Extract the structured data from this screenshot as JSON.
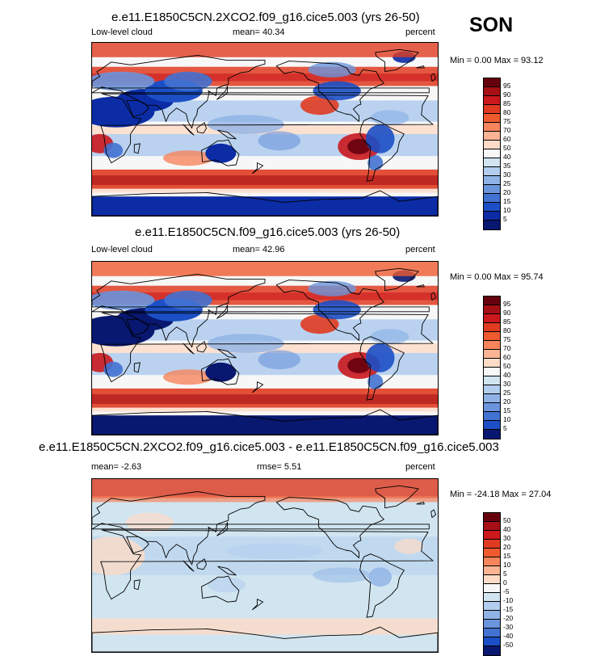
{
  "season": "SON",
  "panels": [
    {
      "title": "e.e11.E1850C5CN.2XCO2.f09_g16.cice5.003 (yrs 26-50)",
      "left_label": "Low-level cloud",
      "center_label": "mean=  40.34",
      "right_label": "percent",
      "minmax": "Min =   0.00 Max =  93.12",
      "colorbar": {
        "levels": [
          "95",
          "90",
          "85",
          "80",
          "75",
          "70",
          "60",
          "50",
          "40",
          "35",
          "30",
          "25",
          "20",
          "15",
          "10",
          "5"
        ],
        "colors": [
          "#67000d",
          "#a50f15",
          "#cb181d",
          "#e03b21",
          "#ef5b2f",
          "#f6855c",
          "#fbb493",
          "#fddbc7",
          "#f7f7f7",
          "#d1e5f0",
          "#b2cdee",
          "#8fb3e6",
          "#6a95dc",
          "#4272d2",
          "#1c4fc5",
          "#0b2ca5",
          "#08176f"
        ]
      },
      "style": "cloud"
    },
    {
      "title": "e.e11.E1850C5CN.f09_g16.cice5.003 (yrs 26-50)",
      "left_label": "Low-level cloud",
      "center_label": "mean=  42.96",
      "right_label": "percent",
      "minmax": "Min =   0.00 Max =  95.74",
      "colorbar": {
        "levels": [
          "95",
          "90",
          "85",
          "80",
          "75",
          "70",
          "60",
          "50",
          "40",
          "30",
          "25",
          "20",
          "15",
          "10",
          "5"
        ],
        "colors": [
          "#67000d",
          "#a50f15",
          "#cb181d",
          "#e03b21",
          "#ef5b2f",
          "#f6855c",
          "#fbb493",
          "#fddbc7",
          "#f7f7f7",
          "#d1e5f0",
          "#b2cdee",
          "#8fb3e6",
          "#6a95dc",
          "#4272d2",
          "#1c4fc5",
          "#08176f"
        ]
      },
      "style": "cloud"
    },
    {
      "title": "e.e11.E1850C5CN.2XCO2.f09_g16.cice5.003 - e.e11.E1850C5CN.f09_g16.cice5.003",
      "left_label": "mean=  -2.63",
      "center_label": "rmse=   5.51",
      "right_label": "percent",
      "minmax": "Min = -24.18 Max =  27.04",
      "colorbar": {
        "levels": [
          "50",
          "40",
          "30",
          "20",
          "15",
          "10",
          "5",
          "0",
          "-5",
          "-10",
          "-15",
          "-20",
          "-30",
          "-40",
          "-50"
        ],
        "colors": [
          "#67000d",
          "#a50f15",
          "#cb181d",
          "#e03b21",
          "#ef5b2f",
          "#f6855c",
          "#fbb493",
          "#fddbc7",
          "#f7f7f7",
          "#d1e5f0",
          "#b2cdee",
          "#8fb3e6",
          "#6a95dc",
          "#4272d2",
          "#1c4fc5",
          "#08176f"
        ]
      },
      "style": "diff"
    }
  ]
}
